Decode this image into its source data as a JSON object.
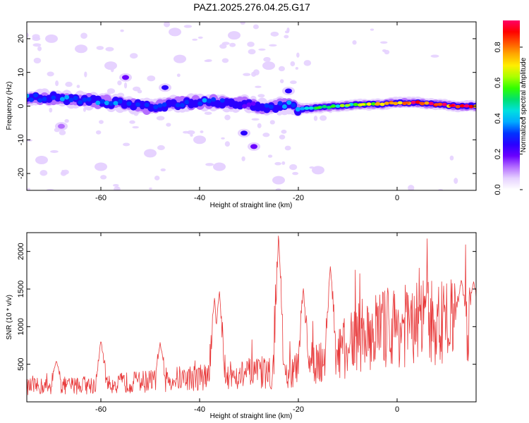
{
  "title": "PAZ1.2025.276.04.25.G17",
  "colors": {
    "snr_line": "#e8393a",
    "background": "#ffffff",
    "axis": "#000000",
    "colormap": [
      "#ffffff",
      "#e6d2ff",
      "#b46eff",
      "#6a00ff",
      "#2a00ff",
      "#0033ff",
      "#00aaff",
      "#00e0e0",
      "#00e070",
      "#30ff00",
      "#aaff00",
      "#ffee00",
      "#ffaa00",
      "#ff5500",
      "#ff0000",
      "#ff0066"
    ]
  },
  "chart_data": [
    {
      "type": "heatmap",
      "name": "spectrogram",
      "title": "PAZ1.2025.276.04.25.G17",
      "xlabel": "Height of straight line (km)",
      "ylabel": "Frequency (Hz)",
      "xlim": [
        -75,
        16
      ],
      "ylim": [
        -25,
        25
      ],
      "xticks": [
        -60,
        -40,
        -20,
        0
      ],
      "yticks": [
        -20,
        -10,
        0,
        10,
        20
      ],
      "colorbar": {
        "label": "Normalized spectral amplitude",
        "range": [
          0.0,
          0.95
        ],
        "ticks": [
          0.0,
          0.2,
          0.4,
          0.6,
          0.8
        ]
      },
      "ridge": {
        "x": [
          -74,
          -70,
          -66,
          -62,
          -58,
          -54,
          -50,
          -46,
          -42,
          -38,
          -34,
          -30,
          -26,
          -22,
          -20,
          -16,
          -12,
          -8,
          -4,
          0,
          4,
          8,
          12,
          16
        ],
        "freq": [
          2.5,
          2.5,
          2.0,
          1.5,
          1.0,
          0.5,
          -0.5,
          0.5,
          1.0,
          1.5,
          1.0,
          0.5,
          -0.5,
          0.5,
          -1.0,
          -0.5,
          0.0,
          0.5,
          0.5,
          1.0,
          1.0,
          0.5,
          0.0,
          0.0
        ],
        "amp": [
          0.35,
          0.3,
          0.35,
          0.3,
          0.35,
          0.3,
          0.25,
          0.3,
          0.3,
          0.3,
          0.25,
          0.2,
          0.25,
          0.35,
          0.35,
          0.5,
          0.55,
          0.6,
          0.7,
          0.7,
          0.8,
          0.8,
          0.85,
          0.9
        ]
      },
      "blobs": [
        {
          "x": -47,
          "f": 5.5,
          "a": 0.25
        },
        {
          "x": -31,
          "f": -8.0,
          "a": 0.25
        },
        {
          "x": -29,
          "f": -12.0,
          "a": 0.2
        },
        {
          "x": -22,
          "f": 4.5,
          "a": 0.25
        },
        {
          "x": -55,
          "f": 8.5,
          "a": 0.18
        },
        {
          "x": -70,
          "f": 20.0,
          "a": 0.08
        },
        {
          "x": -64,
          "f": 17.0,
          "a": 0.08
        },
        {
          "x": -50,
          "f": -14.0,
          "a": 0.08
        },
        {
          "x": -60,
          "f": -18.0,
          "a": 0.08
        },
        {
          "x": -36,
          "f": -18.0,
          "a": 0.08
        },
        {
          "x": -16,
          "f": -19.0,
          "a": 0.08
        },
        {
          "x": -44,
          "f": 14.0,
          "a": 0.08
        },
        {
          "x": -26,
          "f": 12.0,
          "a": 0.08
        },
        {
          "x": -33,
          "f": 21.0,
          "a": 0.08
        },
        {
          "x": -68,
          "f": -6.0,
          "a": 0.1
        },
        {
          "x": -72,
          "f": -16.0,
          "a": 0.07
        },
        {
          "x": -58,
          "f": 12.0,
          "a": 0.07
        },
        {
          "x": -40,
          "f": -10.0,
          "a": 0.07
        },
        {
          "x": -45,
          "f": 22.0,
          "a": 0.07
        },
        {
          "x": -24,
          "f": -22.0,
          "a": 0.07
        }
      ]
    },
    {
      "type": "line",
      "name": "snr",
      "xlabel": "Height of straight line (km)",
      "ylabel": "SNR (10 * v/v)",
      "xlim": [
        -75,
        16
      ],
      "ylim": [
        0,
        2250
      ],
      "xticks": [
        -60,
        -40,
        -20,
        0
      ],
      "yticks": [
        500,
        1000,
        1500,
        2000
      ],
      "trend": {
        "x": [
          -75,
          -60,
          -40,
          -26,
          -22,
          -20,
          -15,
          -10,
          -8,
          -5,
          0,
          5,
          10,
          16
        ],
        "y": [
          200,
          230,
          330,
          380,
          350,
          450,
          570,
          700,
          880,
          950,
          1000,
          1050,
          1050,
          1150
        ]
      },
      "peaks": [
        {
          "x": -69,
          "y": 550
        },
        {
          "x": -60,
          "y": 820
        },
        {
          "x": -48,
          "y": 790
        },
        {
          "x": -37,
          "y": 1390
        },
        {
          "x": -36,
          "y": 1500
        },
        {
          "x": -24,
          "y": 2250
        },
        {
          "x": -19,
          "y": 1520
        },
        {
          "x": -13.5,
          "y": 1820
        },
        {
          "x": 13,
          "y": 1630
        },
        {
          "x": 15.5,
          "y": 1600
        }
      ]
    }
  ]
}
